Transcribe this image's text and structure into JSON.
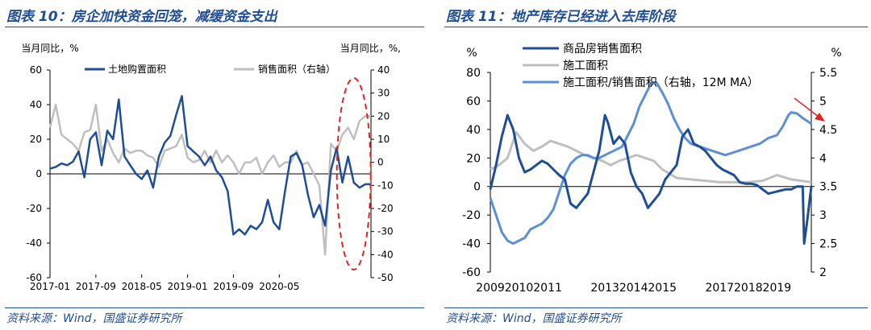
{
  "figures": [
    {
      "title": "图表 10：房企加快资金回笼，减缓资金支出",
      "source": "资料来源：Wind，国盛证券研究所"
    },
    {
      "title": "图表 11：地产库存已经进入去库阶段",
      "source": "资料来源：Wind，国盛证券研究所"
    }
  ],
  "colors": {
    "dark_blue": "#1f4e96",
    "light_blue": "#5b8fd6",
    "gray": "#bfbfbf",
    "red": "#e32222"
  },
  "chart_data": [
    {
      "type": "line",
      "y_left_label": "当月同比，%",
      "y_right_label": "当月同比，%,",
      "ylim_left": [
        -60,
        60
      ],
      "ylim_right": [
        -50,
        40
      ],
      "yticks_left": [
        "60",
        "40",
        "20",
        "0",
        "-20",
        "-40",
        "-60"
      ],
      "yticks_right": [
        "40",
        "30",
        "20",
        "10",
        "0",
        "-10",
        "-20",
        "-30",
        "-40",
        "-50"
      ],
      "x_tick_labels": [
        "2017-01",
        "2017-09",
        "2018-05",
        "2019-01",
        "2019-09",
        "2020-05"
      ],
      "x_start": "2017-01",
      "grid": false,
      "legend_position": "top",
      "annotation": "red dashed ellipse around latest months",
      "series": [
        {
          "name": "土地购置面积",
          "axis": "left",
          "color": "#1f4e96",
          "values": [
            3,
            4,
            6,
            5,
            7,
            13,
            -2,
            20,
            24,
            5,
            25,
            20,
            43,
            10,
            5,
            0,
            -3,
            2,
            -8,
            10,
            18,
            22,
            34,
            45,
            16,
            13,
            10,
            5,
            10,
            2,
            -2,
            -10,
            -35,
            -32,
            -35,
            -30,
            -32,
            -28,
            -15,
            -28,
            -32,
            -10,
            10,
            12,
            5,
            -12,
            -25,
            -18,
            -30,
            2,
            15,
            -5,
            10,
            -5,
            -8,
            -6,
            -6
          ]
        },
        {
          "name": "销售面积（右轴）",
          "axis": "right",
          "color": "#bfbfbf",
          "values": [
            15,
            25,
            12,
            10,
            8,
            5,
            13,
            14,
            25,
            5,
            10,
            4,
            0,
            6,
            4,
            5,
            5,
            3,
            2,
            -2,
            5,
            6,
            7,
            12,
            2,
            0,
            1,
            5,
            0,
            5,
            0,
            3,
            0,
            -5,
            0,
            0,
            2,
            -5,
            0,
            3,
            -2,
            0,
            0,
            5,
            -1,
            0,
            -5,
            -10,
            -40,
            8,
            5,
            12,
            15,
            10,
            18,
            20,
            20
          ]
        }
      ]
    },
    {
      "type": "line",
      "y_left_label": "%",
      "y_right_label": "%",
      "ylim_left": [
        -60,
        80
      ],
      "ylim_right": [
        2,
        5.5
      ],
      "yticks_left": [
        "80",
        "60",
        "40",
        "20",
        "0",
        "-20",
        "-40",
        "-60"
      ],
      "yticks_right": [
        "5.5",
        "5",
        "4.5",
        "4",
        "3.5",
        "3",
        "2.5",
        "2"
      ],
      "x_tick_labels": [
        "2009",
        "2010",
        "2011",
        "2013",
        "2014",
        "2015",
        "2017",
        "2018",
        "2019"
      ],
      "x_range": [
        2009,
        2020.2
      ],
      "grid": false,
      "legend_position": "top",
      "annotation": "red arrow pointing to latest value",
      "series": [
        {
          "name": "商品房销售面积",
          "axis": "left",
          "color": "#1f4e96",
          "x": [
            2009.0,
            2009.2,
            2009.4,
            2009.6,
            2009.8,
            2010.0,
            2010.2,
            2010.4,
            2010.6,
            2010.8,
            2011.0,
            2011.2,
            2011.4,
            2011.6,
            2011.8,
            2012.0,
            2012.2,
            2012.4,
            2012.6,
            2012.8,
            2013.0,
            2013.1,
            2013.3,
            2013.5,
            2013.7,
            2013.9,
            2014.1,
            2014.3,
            2014.5,
            2014.7,
            2014.9,
            2015.1,
            2015.3,
            2015.5,
            2015.7,
            2015.9,
            2016.1,
            2016.3,
            2016.5,
            2016.7,
            2016.9,
            2017.1,
            2017.3,
            2017.5,
            2017.7,
            2017.9,
            2018.1,
            2018.3,
            2018.5,
            2018.7,
            2018.9,
            2019.1,
            2019.3,
            2019.5,
            2019.7,
            2019.9,
            2019.95,
            2020.05,
            2020.2
          ],
          "values": [
            -2,
            15,
            35,
            50,
            40,
            20,
            10,
            12,
            15,
            18,
            16,
            12,
            8,
            5,
            -12,
            -15,
            -10,
            -5,
            10,
            25,
            50,
            45,
            30,
            35,
            30,
            10,
            0,
            -5,
            -15,
            -10,
            -5,
            5,
            10,
            15,
            35,
            40,
            30,
            28,
            25,
            20,
            15,
            12,
            10,
            8,
            3,
            2,
            2,
            1,
            -2,
            -5,
            -4,
            -3,
            -2,
            -2,
            0,
            0,
            -40,
            -25,
            0
          ]
        },
        {
          "name": "施工面积",
          "axis": "left",
          "color": "#bfbfbf",
          "x": [
            2009.0,
            2009.3,
            2009.6,
            2009.9,
            2010.2,
            2010.5,
            2010.8,
            2011.1,
            2011.4,
            2011.7,
            2012.0,
            2012.3,
            2012.6,
            2012.9,
            2013.2,
            2013.5,
            2013.8,
            2014.1,
            2014.4,
            2014.7,
            2015.0,
            2015.5,
            2016.0,
            2016.5,
            2017.0,
            2017.5,
            2018.0,
            2018.5,
            2019.0,
            2019.5,
            2020.2
          ],
          "values": [
            12,
            15,
            20,
            38,
            30,
            25,
            28,
            32,
            30,
            28,
            25,
            22,
            20,
            18,
            15,
            18,
            20,
            22,
            20,
            18,
            12,
            6,
            5,
            4,
            3,
            3,
            3,
            4,
            8,
            5,
            3
          ]
        },
        {
          "name": "施工面积/销售面积（右轴，12M MA）",
          "axis": "right",
          "color": "#5b8fd6",
          "x": [
            2009.0,
            2009.2,
            2009.4,
            2009.6,
            2009.8,
            2010.0,
            2010.2,
            2010.4,
            2010.6,
            2010.8,
            2011.0,
            2011.2,
            2011.4,
            2011.6,
            2011.8,
            2012.0,
            2012.2,
            2012.4,
            2012.6,
            2012.8,
            2013.0,
            2013.2,
            2013.4,
            2013.6,
            2013.8,
            2014.0,
            2014.2,
            2014.4,
            2014.6,
            2014.8,
            2015.0,
            2015.2,
            2015.4,
            2015.6,
            2015.8,
            2016.0,
            2016.3,
            2016.6,
            2016.9,
            2017.2,
            2017.5,
            2017.8,
            2018.1,
            2018.4,
            2018.7,
            2019.0,
            2019.2,
            2019.4,
            2019.5,
            2019.7,
            2019.9,
            2020.05,
            2020.2
          ],
          "values": [
            3.3,
            3.0,
            2.7,
            2.55,
            2.5,
            2.55,
            2.6,
            2.75,
            2.8,
            2.85,
            2.95,
            3.1,
            3.4,
            3.7,
            3.9,
            4.0,
            4.05,
            4.05,
            4.0,
            4.0,
            4.05,
            4.1,
            4.15,
            4.2,
            4.4,
            4.6,
            4.9,
            5.1,
            5.3,
            5.32,
            5.15,
            4.95,
            4.7,
            4.5,
            4.35,
            4.25,
            4.2,
            4.15,
            4.1,
            4.05,
            4.1,
            4.15,
            4.2,
            4.25,
            4.35,
            4.4,
            4.55,
            4.75,
            4.8,
            4.78,
            4.7,
            4.65,
            4.6
          ]
        }
      ]
    }
  ]
}
